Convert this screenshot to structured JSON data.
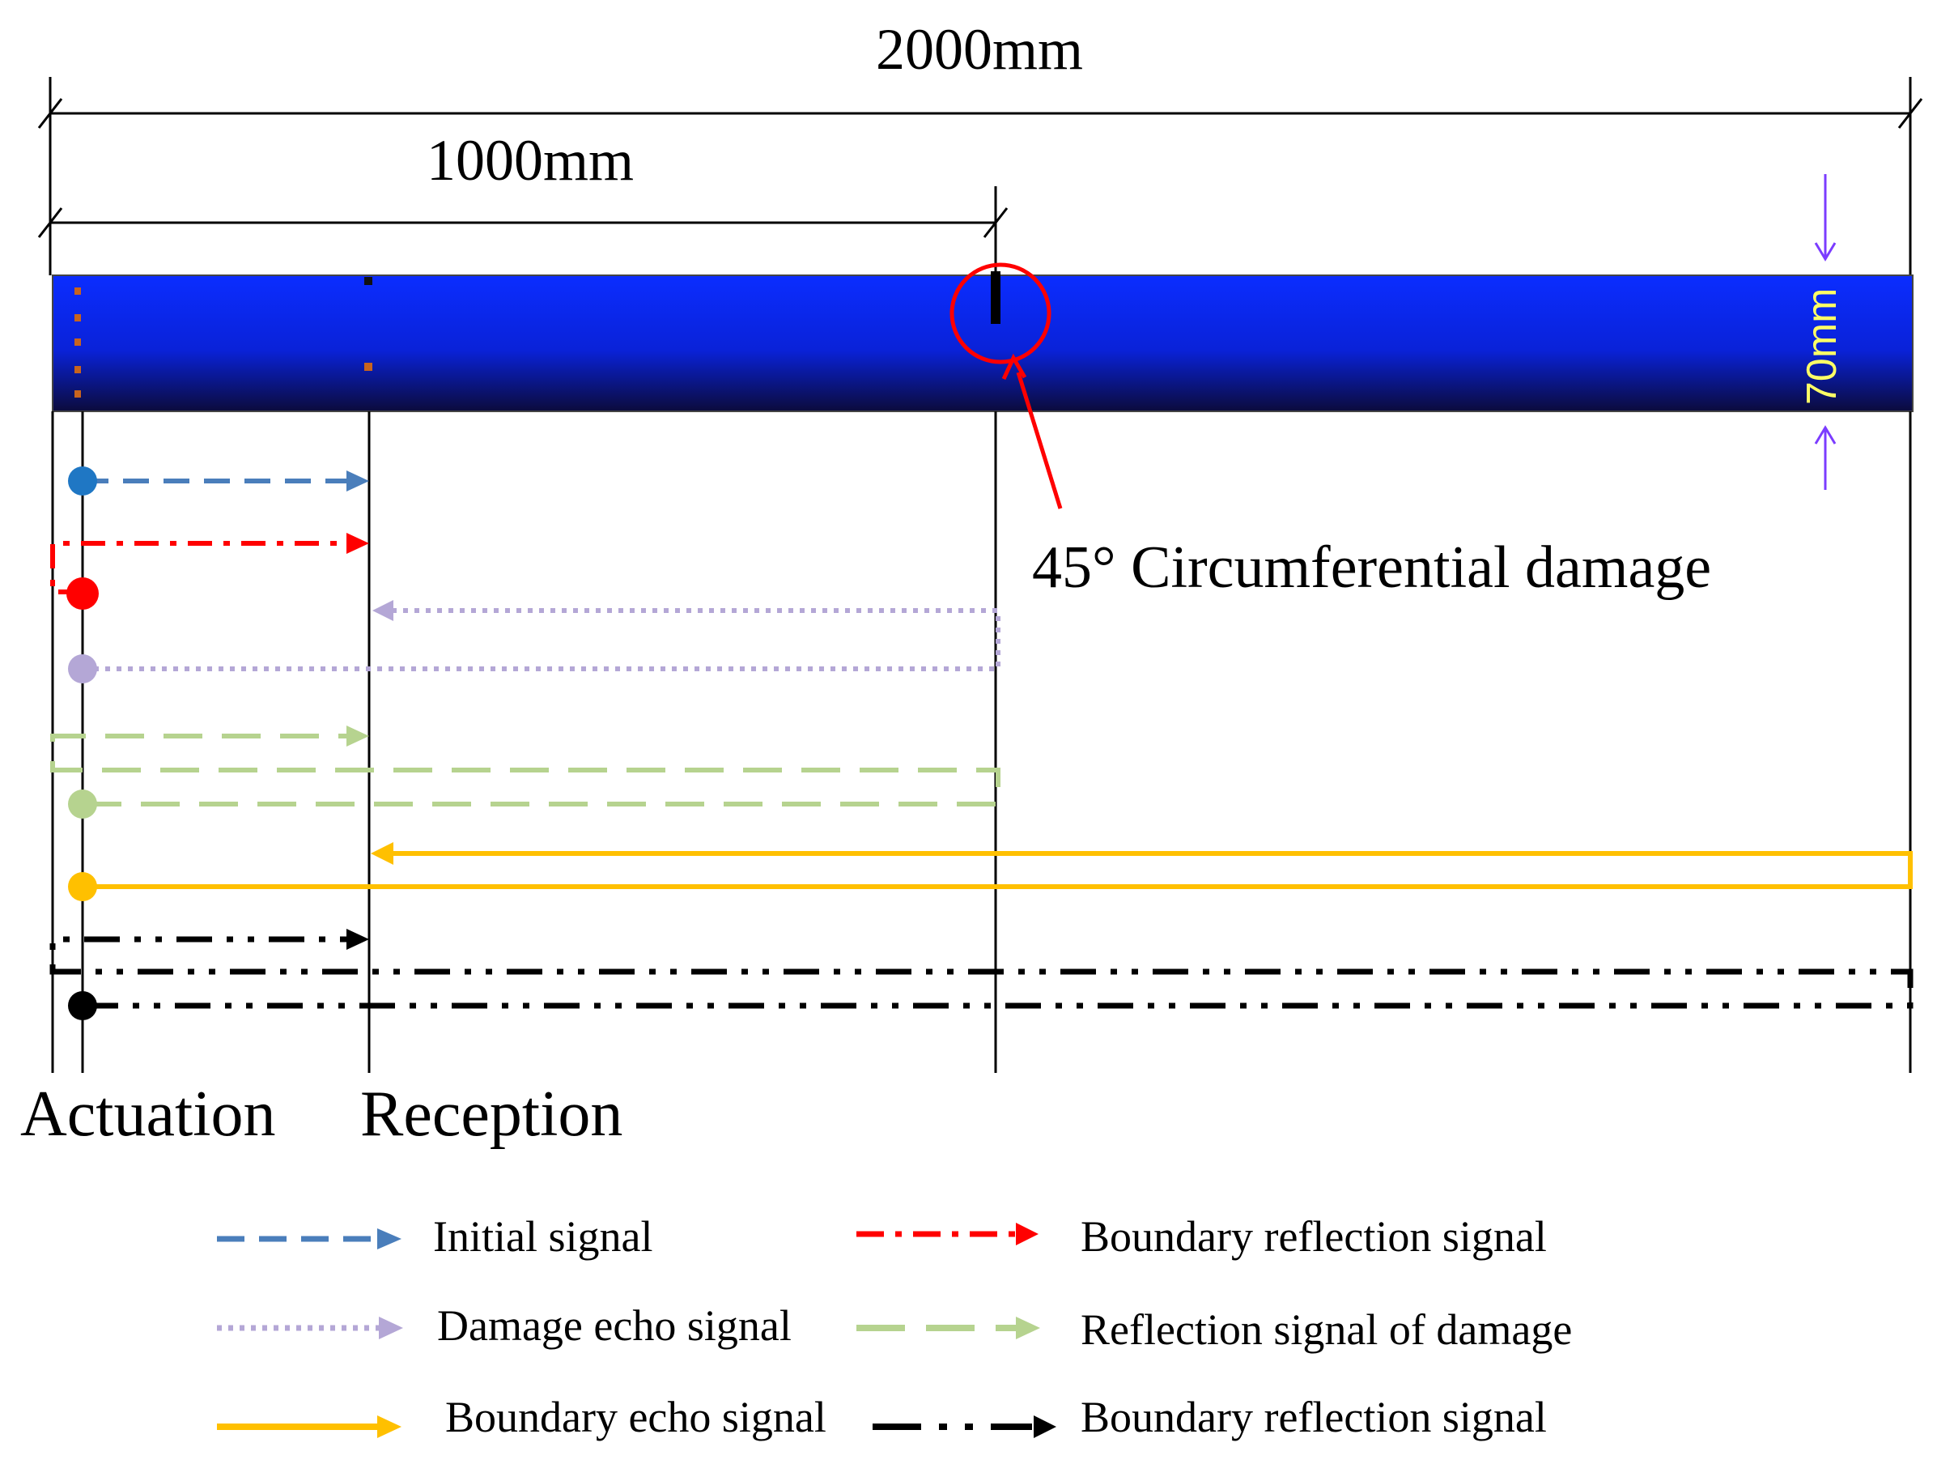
{
  "dimensions": {
    "total_length": "2000mm",
    "damage_distance": "1000mm",
    "pipe_diameter": "70mm"
  },
  "damage_label": "45° Circumferential damage",
  "positions": {
    "actuation": "Actuation",
    "reception": "Reception"
  },
  "legend": [
    {
      "label": "Initial signal",
      "color": "#4a7ebb",
      "style": "dashed"
    },
    {
      "label": "Boundary reflection signal",
      "color": "#ff0000",
      "style": "dash-dot"
    },
    {
      "label": "Damage echo signal",
      "color": "#b4a7d6",
      "style": "dotted"
    },
    {
      "label": "Reflection signal of damage",
      "color": "#b6d38f",
      "style": "long-dash"
    },
    {
      "label": "Boundary echo signal",
      "color": "#ffc000",
      "style": "solid"
    },
    {
      "label": "Boundary reflection signal",
      "color": "#000000",
      "style": "dash-dot-dot"
    }
  ],
  "colors": {
    "pipe_top": "#0a2cff",
    "pipe_bottom": "#0a0a3a",
    "damage_circle": "#ff0000",
    "dimension_arrow": "#7b3cff",
    "dimension_text": "#ffff66"
  }
}
